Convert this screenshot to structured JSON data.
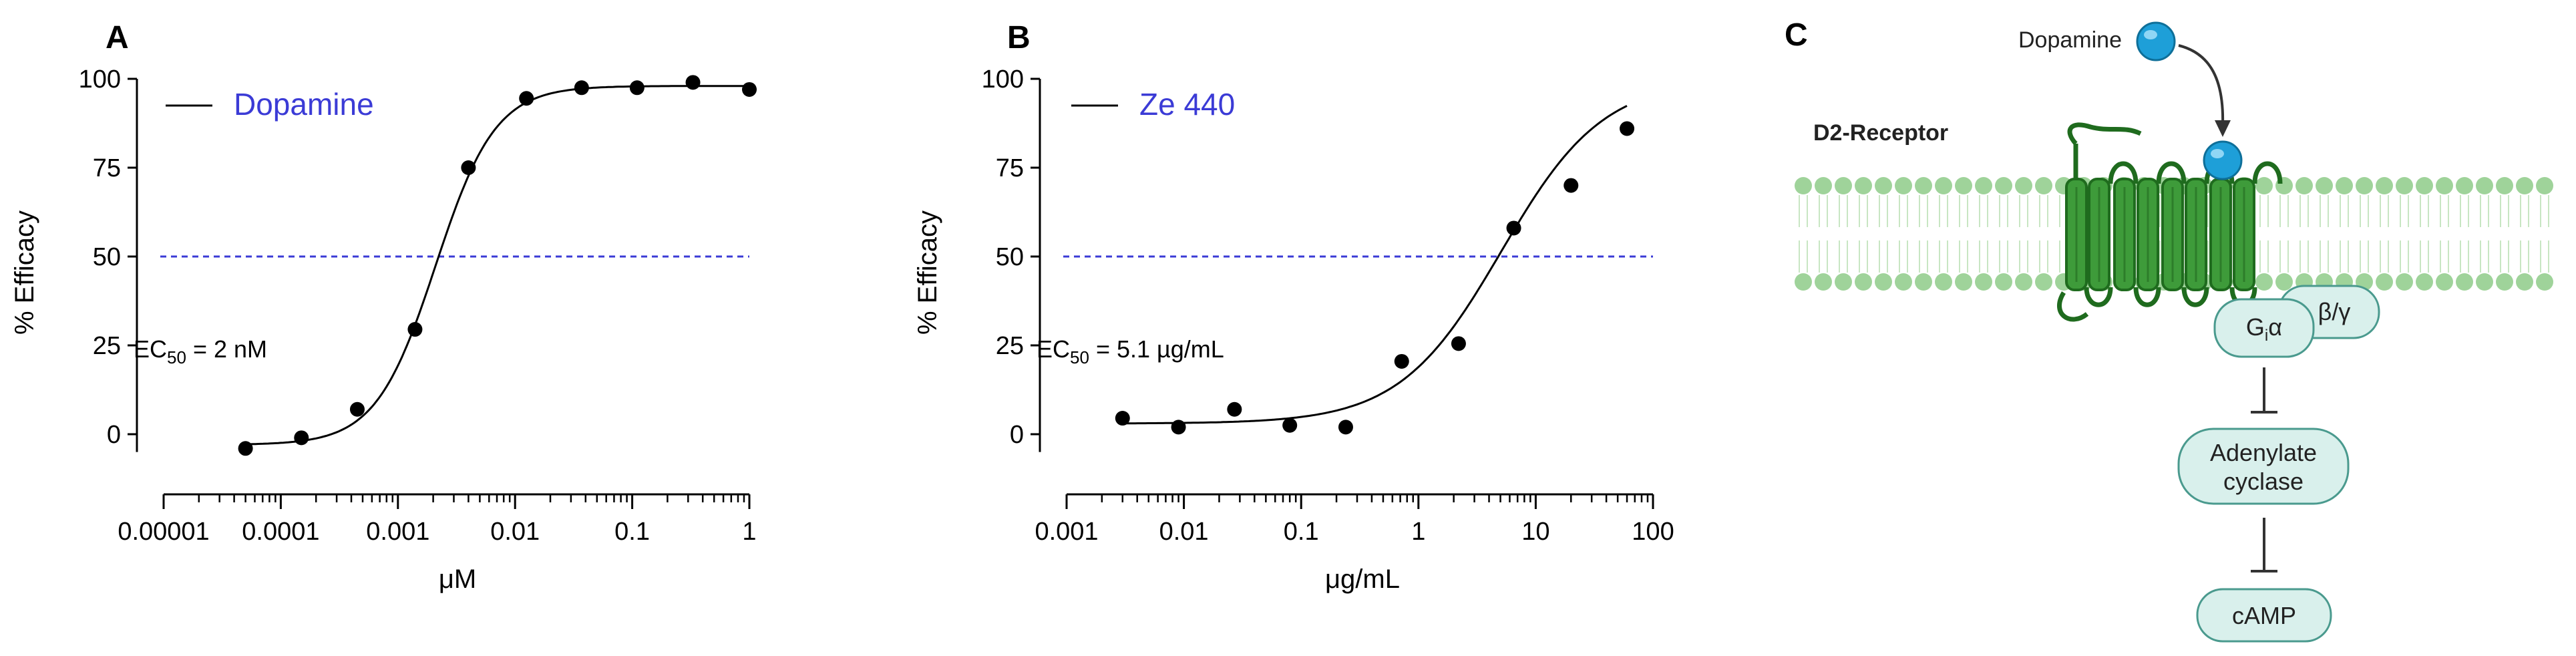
{
  "chart_data": [
    {
      "type": "scatter",
      "panel": "A",
      "title": "",
      "xlabel": "μM",
      "ylabel": "% Efficacy",
      "xscale": "log",
      "xlim": [
        1e-05,
        1
      ],
      "ylim": [
        -5,
        100
      ],
      "x_ticks": [
        1e-05,
        0.0001,
        0.001,
        0.01,
        0.1,
        1
      ],
      "x_tick_labels": [
        "0.00001",
        "0.0001",
        "0.001",
        "0.01",
        "0.1",
        "1"
      ],
      "y_ticks": [
        0,
        25,
        50,
        75,
        100
      ],
      "y_tick_labels": [
        "0",
        "25",
        "50",
        "75",
        "100"
      ],
      "reference_line_y": 50,
      "legend": [
        "Dopamine"
      ],
      "legend_color": "#3b3bd6",
      "annotation": {
        "prefix": "EC",
        "sub": "50",
        "suffix": " = 2 nM"
      },
      "series": [
        {
          "name": "Dopamine",
          "x": [
            5e-05,
            0.00015,
            0.00045,
            0.0014,
            0.004,
            0.0125,
            0.037,
            0.11,
            0.33,
            1
          ],
          "y": [
            -4,
            -1,
            7,
            29.5,
            75,
            94.5,
            97.5,
            97.5,
            99,
            97
          ]
        }
      ],
      "fit": {
        "bottom": -3,
        "top": 98,
        "ec50": 0.0021,
        "hill": 1.7
      }
    },
    {
      "type": "scatter",
      "panel": "B",
      "title": "",
      "xlabel": "μg/mL",
      "ylabel": "% Efficacy",
      "xscale": "log",
      "xlim": [
        0.001,
        100
      ],
      "ylim": [
        -5,
        100
      ],
      "x_ticks": [
        0.001,
        0.01,
        0.1,
        1,
        10,
        100
      ],
      "x_tick_labels": [
        "0.001",
        "0.01",
        "0.1",
        "1",
        "10",
        "100"
      ],
      "y_ticks": [
        0,
        25,
        50,
        75,
        100
      ],
      "y_tick_labels": [
        "0",
        "25",
        "50",
        "75",
        "100"
      ],
      "reference_line_y": 50,
      "legend": [
        "Ze 440"
      ],
      "legend_color": "#3b3bd6",
      "annotation": {
        "prefix": "EC",
        "sub": "50",
        "suffix": " = 5.1 µg/mL"
      },
      "series": [
        {
          "name": "Ze 440",
          "x": [
            0.003,
            0.009,
            0.027,
            0.08,
            0.24,
            0.72,
            2.2,
            6.5,
            20,
            60
          ],
          "y": [
            4.5,
            2,
            7,
            2.5,
            2,
            20.5,
            25.5,
            58,
            70,
            86
          ]
        }
      ],
      "fit": {
        "bottom": 3,
        "top": 100,
        "ec50": 5.1,
        "hill": 1.0
      }
    }
  ],
  "diagram": {
    "panel": "C",
    "ligand_label": "Dopamine",
    "receptor_label": "D2-Receptor",
    "g_alpha": {
      "base": "G",
      "sub": "i",
      "rest": "α"
    },
    "g_beta_gamma": "β/γ",
    "enzyme_line1": "Adenylate",
    "enzyme_line2": "cyclase",
    "product": "cAMP",
    "colors": {
      "helix": "#3e9b3a",
      "helix_dark": "#1f6b1e",
      "lipid_head": "#9fd39a",
      "ligand": "#1e9fd8",
      "box_fill": "#d9f0ec",
      "box_stroke": "#4a9a8e"
    }
  }
}
